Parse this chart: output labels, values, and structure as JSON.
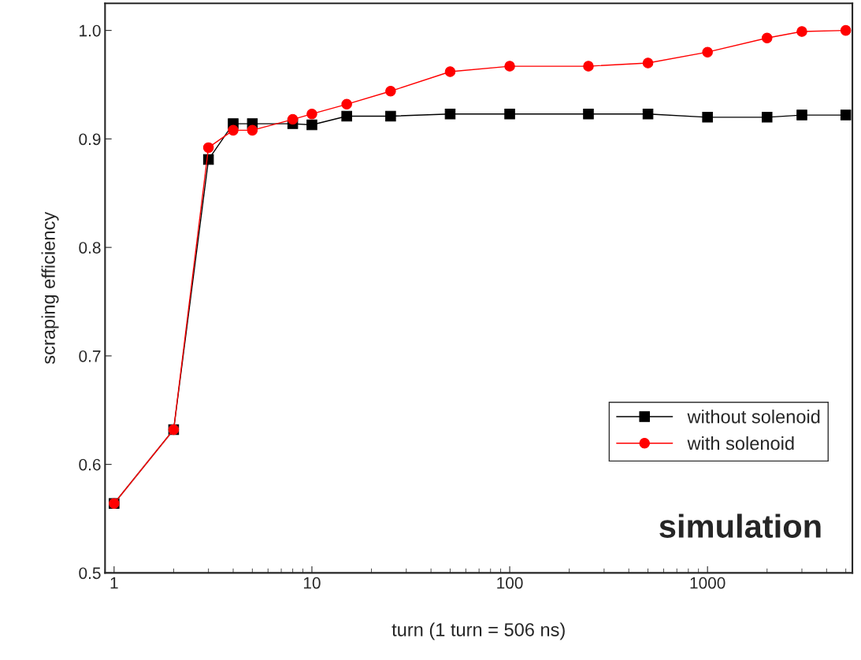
{
  "chart_data": {
    "type": "line",
    "xlabel": "turn (1 turn = 506 ns)",
    "ylabel": "scraping efficiency",
    "x": [
      1,
      2,
      3,
      4,
      5,
      8,
      10,
      15,
      25,
      50,
      100,
      250,
      500,
      1000,
      2000,
      3000,
      5000
    ],
    "series": [
      {
        "name": "without solenoid",
        "color": "#000000",
        "marker": "square",
        "values": [
          0.564,
          0.632,
          0.881,
          0.914,
          0.914,
          0.914,
          0.913,
          0.921,
          0.921,
          0.923,
          0.923,
          0.923,
          0.923,
          0.92,
          0.92,
          0.922,
          0.922
        ]
      },
      {
        "name": "with solenoid",
        "color": "#ff0000",
        "marker": "circle",
        "values": [
          0.564,
          0.632,
          0.892,
          0.908,
          0.908,
          0.918,
          0.923,
          0.932,
          0.944,
          0.962,
          0.967,
          0.967,
          0.97,
          0.98,
          0.993,
          0.999,
          1.0
        ]
      }
    ],
    "log": "x",
    "xlim": [
      0.9,
      5400
    ],
    "xticks": [
      1,
      10,
      100,
      1000
    ],
    "ylim": [
      0.5,
      1.025
    ],
    "yticks": [
      {
        "value": 0.5,
        "label": "0.5"
      },
      {
        "value": 0.6,
        "label": "0.6"
      },
      {
        "value": 0.7,
        "label": "0.7"
      },
      {
        "value": 0.8,
        "label": "0.8"
      },
      {
        "value": 0.9,
        "label": "0.9"
      },
      {
        "value": 1.0,
        "label": "1.0"
      }
    ],
    "grid": false,
    "legend": "bottom right",
    "line_style": "solid",
    "annotations": [
      "simulation"
    ]
  }
}
